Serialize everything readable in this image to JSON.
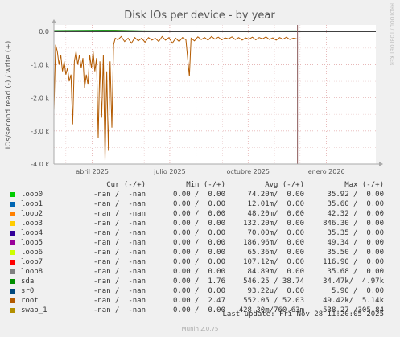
{
  "title": "Disk IOs per device - by year",
  "side_label": "RRDTOOL / TOBI OETIKER",
  "munin_version": "Munin 2.0.75",
  "last_update": "Last update: Fri Nov 28 11:20:05 2025",
  "legend_header": {
    "cur": "Cur (-/+)",
    "min": "Min (-/+)",
    "avg": "Avg (-/+)",
    "max": "Max (-/+)"
  },
  "legend": [
    {
      "name": "loop0",
      "color": "#00cc00",
      "cur": "-nan /  -nan",
      "min": "0.00 /  0.00",
      "avg": "74.20m/  0.00",
      "max": "35.92 /  0.00"
    },
    {
      "name": "loop1",
      "color": "#0066b3",
      "cur": "-nan /  -nan",
      "min": "0.00 /  0.00",
      "avg": "12.01m/  0.00",
      "max": "35.60 /  0.00"
    },
    {
      "name": "loop2",
      "color": "#ff8000",
      "cur": "-nan /  -nan",
      "min": "0.00 /  0.00",
      "avg": "48.20m/  0.00",
      "max": "42.32 /  0.00"
    },
    {
      "name": "loop3",
      "color": "#ffcc00",
      "cur": "-nan /  -nan",
      "min": "0.00 /  0.00",
      "avg": "132.20m/  0.00",
      "max": "846.30 /  0.00"
    },
    {
      "name": "loop4",
      "color": "#330099",
      "cur": "-nan /  -nan",
      "min": "0.00 /  0.00",
      "avg": "70.00m/  0.00",
      "max": "35.35 /  0.00"
    },
    {
      "name": "loop5",
      "color": "#990099",
      "cur": "-nan /  -nan",
      "min": "0.00 /  0.00",
      "avg": "186.96m/  0.00",
      "max": "49.34 /  0.00"
    },
    {
      "name": "loop6",
      "color": "#ccff00",
      "cur": "-nan /  -nan",
      "min": "0.00 /  0.00",
      "avg": "65.36m/  0.00",
      "max": "35.50 /  0.00"
    },
    {
      "name": "loop7",
      "color": "#ff0000",
      "cur": "-nan /  -nan",
      "min": "0.00 /  0.00",
      "avg": "107.12m/  0.00",
      "max": "116.90 /  0.00"
    },
    {
      "name": "loop8",
      "color": "#808080",
      "cur": "-nan /  -nan",
      "min": "0.00 /  0.00",
      "avg": "84.89m/  0.00",
      "max": "35.68 /  0.00"
    },
    {
      "name": "sda",
      "color": "#008f00",
      "cur": "-nan /  -nan",
      "min": "0.00 /  1.76",
      "avg": "546.25 / 38.74",
      "max": "34.47k/  4.97k"
    },
    {
      "name": "sr0",
      "color": "#00487d",
      "cur": "-nan /  -nan",
      "min": "0.00 /  0.00",
      "avg": "93.22u/  0.00",
      "max": "5.90 /  0.00"
    },
    {
      "name": "root",
      "color": "#b35a00",
      "cur": "-nan /  -nan",
      "min": "0.00 /  2.47",
      "avg": "552.05 / 52.03",
      "max": "49.42k/  5.14k"
    },
    {
      "name": "swap_1",
      "color": "#b38f00",
      "cur": "-nan /  -nan",
      "min": "0.00 /  0.00",
      "avg": "428.30m/760.63m",
      "max": "538.27 /305.84"
    }
  ],
  "chart_data": {
    "type": "line",
    "title": "Disk IOs per device - by year",
    "ylabel": "IOs/second read (-) / write (+)",
    "ylim": [
      -4000,
      200
    ],
    "yticks": [
      {
        "value": 0,
        "label": "0.0"
      },
      {
        "value": -1000,
        "label": "-1.0 k"
      },
      {
        "value": -2000,
        "label": "-2.0 k"
      },
      {
        "value": -3000,
        "label": "-3.0 k"
      },
      {
        "value": -4000,
        "label": "-4.0 k"
      }
    ],
    "xlim": [
      "2025-02-15",
      "2026-02-28"
    ],
    "xticks": [
      {
        "date": "2025-04-01",
        "label": "abril 2025"
      },
      {
        "date": "2025-07-01",
        "label": "julio 2025"
      },
      {
        "date": "2025-10-01",
        "label": "octubre 2025"
      },
      {
        "date": "2026-01-01",
        "label": "enero 2026"
      }
    ],
    "now_marker": "2025-11-28",
    "grid": true,
    "series": [
      {
        "name": "root",
        "color": "#b35a00",
        "points": [
          [
            "2025-02-15",
            -2400
          ],
          [
            "2025-02-17",
            -400
          ],
          [
            "2025-02-19",
            -600
          ],
          [
            "2025-02-21",
            -1000
          ],
          [
            "2025-02-23",
            -700
          ],
          [
            "2025-02-25",
            -1200
          ],
          [
            "2025-02-27",
            -900
          ],
          [
            "2025-03-01",
            -1300
          ],
          [
            "2025-03-03",
            -1100
          ],
          [
            "2025-03-05",
            -1500
          ],
          [
            "2025-03-07",
            -1300
          ],
          [
            "2025-03-09",
            -2800
          ],
          [
            "2025-03-11",
            -900
          ],
          [
            "2025-03-13",
            -600
          ],
          [
            "2025-03-15",
            -1000
          ],
          [
            "2025-03-17",
            -700
          ],
          [
            "2025-03-19",
            -1100
          ],
          [
            "2025-03-21",
            -800
          ],
          [
            "2025-03-23",
            -1700
          ],
          [
            "2025-03-25",
            -1300
          ],
          [
            "2025-03-27",
            -1600
          ],
          [
            "2025-03-29",
            -700
          ],
          [
            "2025-03-31",
            -1100
          ],
          [
            "2025-04-02",
            -600
          ],
          [
            "2025-04-04",
            -1200
          ],
          [
            "2025-04-06",
            -800
          ],
          [
            "2025-04-08",
            -3200
          ],
          [
            "2025-04-10",
            -900
          ],
          [
            "2025-04-12",
            -2600
          ],
          [
            "2025-04-14",
            -700
          ],
          [
            "2025-04-16",
            -3900
          ],
          [
            "2025-04-18",
            -1200
          ],
          [
            "2025-04-20",
            -3600
          ],
          [
            "2025-04-22",
            -900
          ],
          [
            "2025-04-24",
            -2900
          ],
          [
            "2025-04-26",
            -400
          ],
          [
            "2025-04-28",
            -200
          ],
          [
            "2025-05-01",
            -250
          ],
          [
            "2025-05-05",
            -150
          ],
          [
            "2025-05-09",
            -300
          ],
          [
            "2025-05-13",
            -200
          ],
          [
            "2025-05-17",
            -350
          ],
          [
            "2025-05-21",
            -180
          ],
          [
            "2025-05-25",
            -280
          ],
          [
            "2025-05-29",
            -200
          ],
          [
            "2025-06-02",
            -320
          ],
          [
            "2025-06-06",
            -180
          ],
          [
            "2025-06-10",
            -260
          ],
          [
            "2025-06-14",
            -200
          ],
          [
            "2025-06-18",
            -300
          ],
          [
            "2025-06-22",
            -150
          ],
          [
            "2025-06-26",
            -260
          ],
          [
            "2025-06-30",
            -180
          ],
          [
            "2025-07-04",
            -350
          ],
          [
            "2025-07-08",
            -200
          ],
          [
            "2025-07-12",
            -300
          ],
          [
            "2025-07-16",
            -180
          ],
          [
            "2025-07-20",
            -250
          ],
          [
            "2025-07-24",
            -1350
          ],
          [
            "2025-07-26",
            -200
          ],
          [
            "2025-07-30",
            -280
          ],
          [
            "2025-08-03",
            -160
          ],
          [
            "2025-08-07",
            -240
          ],
          [
            "2025-08-11",
            -180
          ],
          [
            "2025-08-15",
            -260
          ],
          [
            "2025-08-19",
            -150
          ],
          [
            "2025-08-23",
            -230
          ],
          [
            "2025-08-27",
            -170
          ],
          [
            "2025-08-31",
            -250
          ],
          [
            "2025-09-04",
            -190
          ],
          [
            "2025-09-08",
            -220
          ],
          [
            "2025-09-12",
            -160
          ],
          [
            "2025-09-16",
            -240
          ],
          [
            "2025-09-20",
            -180
          ],
          [
            "2025-09-24",
            -260
          ],
          [
            "2025-09-28",
            -190
          ],
          [
            "2025-10-02",
            -230
          ],
          [
            "2025-10-06",
            -170
          ],
          [
            "2025-10-10",
            -250
          ],
          [
            "2025-10-14",
            -180
          ],
          [
            "2025-10-18",
            -220
          ],
          [
            "2025-10-22",
            -160
          ],
          [
            "2025-10-26",
            -240
          ],
          [
            "2025-10-30",
            -190
          ],
          [
            "2025-11-03",
            -260
          ],
          [
            "2025-11-07",
            -180
          ],
          [
            "2025-11-11",
            -230
          ],
          [
            "2025-11-15",
            -170
          ],
          [
            "2025-11-19",
            -240
          ],
          [
            "2025-11-23",
            -200
          ],
          [
            "2025-11-27",
            -220
          ]
        ]
      },
      {
        "name": "sda",
        "color": "#008f00",
        "points": [
          [
            "2025-02-15",
            30
          ],
          [
            "2025-04-28",
            40
          ],
          [
            "2025-06-01",
            20
          ],
          [
            "2025-08-01",
            15
          ],
          [
            "2025-10-01",
            15
          ],
          [
            "2025-11-27",
            20
          ]
        ]
      },
      {
        "name": "swap_1",
        "color": "#b38f00",
        "points": [
          [
            "2025-02-15",
            10
          ],
          [
            "2025-05-01",
            20
          ],
          [
            "2025-07-01",
            10
          ],
          [
            "2025-09-01",
            5
          ],
          [
            "2025-11-27",
            5
          ]
        ]
      }
    ]
  }
}
